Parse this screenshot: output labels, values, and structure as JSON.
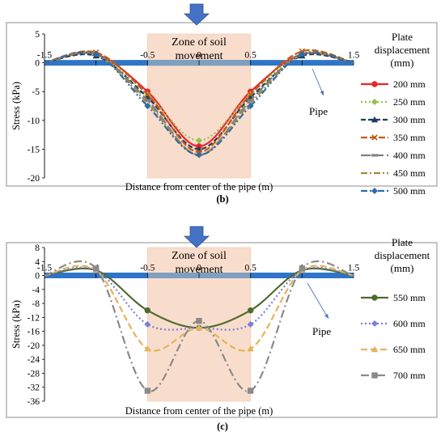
{
  "chart_data": [
    {
      "type": "line",
      "panel_label": "(b)",
      "xlabel": "Distance from center of the pipe (m)",
      "ylabel": "Stress (kPa)",
      "xlim": [
        -1.5,
        1.5
      ],
      "ylim": [
        -20,
        5
      ],
      "x_ticks": [
        "-1.5",
        "-1",
        "-0.5",
        "0",
        "0.5",
        "1",
        "1.5"
      ],
      "y_ticks": [
        "5",
        "0",
        "-5",
        "-10",
        "-15",
        "-20"
      ],
      "zone_label": [
        "Zone of soil",
        "movement"
      ],
      "zone_range": [
        -0.5,
        0.5
      ],
      "pipe_label": "Pipe",
      "legend_title": [
        "Plate",
        "displacement",
        "(mm)"
      ],
      "legend_placement": "right",
      "grid": false,
      "x": [
        -1.5,
        -1,
        -0.5,
        0,
        0.5,
        1,
        1.5
      ],
      "series": [
        {
          "name": "200 mm",
          "color": "#e8262c",
          "dash": "",
          "marker": "circle",
          "values": [
            0,
            1.5,
            -5,
            -14.5,
            -5,
            1.5,
            0
          ]
        },
        {
          "name": "250 mm",
          "color": "#92c14e",
          "dash": "2,3",
          "marker": "diamond",
          "values": [
            0,
            1.5,
            -5.5,
            -13.5,
            -5.5,
            1.5,
            0
          ]
        },
        {
          "name": "300 mm",
          "color": "#1f3b64",
          "dash": "6,3",
          "marker": "triangle",
          "values": [
            0,
            1.2,
            -6,
            -15,
            -6,
            1.2,
            0
          ]
        },
        {
          "name": "350 mm",
          "color": "#c55a11",
          "dash": "8,3",
          "marker": "x",
          "values": [
            0,
            1.8,
            -5.5,
            -15.5,
            -5.5,
            2,
            0
          ]
        },
        {
          "name": "400 mm",
          "color": "#7f7f7f",
          "dash": "12,4",
          "marker": "dash",
          "values": [
            0,
            1.5,
            -6.5,
            -16,
            -6.5,
            1.5,
            0
          ]
        },
        {
          "name": "450 mm",
          "color": "#a08a3c",
          "dash": "8,3,2,3",
          "marker": "none",
          "values": [
            0,
            1.4,
            -7,
            -16,
            -7,
            1.4,
            0
          ]
        },
        {
          "name": "500 mm",
          "color": "#2e6ba8",
          "dash": "8,3,2,3,2,3",
          "marker": "diamond",
          "values": [
            0,
            1.5,
            -7.5,
            -16,
            -7.5,
            1.5,
            0
          ]
        }
      ]
    },
    {
      "type": "line",
      "panel_label": "(c)",
      "xlabel": "Distance from center of the pipe (m)",
      "ylabel": "Stress (kPa)",
      "xlim": [
        -1.5,
        1.5
      ],
      "ylim": [
        -36,
        8
      ],
      "x_ticks": [
        "-1.5",
        "-1",
        "-0.5",
        "0",
        "0.5",
        "1",
        "1.5"
      ],
      "y_ticks": [
        "8",
        "4",
        "0",
        "-4",
        "-8",
        "-12",
        "-16",
        "-20",
        "-24",
        "-28",
        "-32",
        "-36"
      ],
      "zone_label": [
        "Zone of soil",
        "movement"
      ],
      "zone_range": [
        -0.5,
        0.5
      ],
      "pipe_label": "Pipe",
      "legend_title": [
        "Plate",
        "displacement",
        "(mm)"
      ],
      "legend_placement": "right",
      "grid": false,
      "x": [
        -1.5,
        -1,
        -0.5,
        0,
        0.5,
        1,
        1.5
      ],
      "series": [
        {
          "name": "550 mm",
          "color": "#4e6b2e",
          "dash": "",
          "marker": "circle",
          "values": [
            0,
            1.5,
            -10,
            -15,
            -10,
            1.5,
            0
          ]
        },
        {
          "name": "600 mm",
          "color": "#7b7fd6",
          "dash": "2,3",
          "marker": "diamond",
          "values": [
            0,
            1.5,
            -14,
            -15,
            -14,
            1.5,
            0
          ]
        },
        {
          "name": "650 mm",
          "color": "#e6b35c",
          "dash": "8,4",
          "marker": "triangle",
          "values": [
            0,
            1.5,
            -21,
            -15,
            -21,
            1.5,
            0
          ]
        },
        {
          "name": "700 mm",
          "color": "#8a8a8a",
          "dash": "10,4,2,4",
          "marker": "square",
          "values": [
            0,
            2,
            -33,
            -13,
            -33,
            2,
            0
          ]
        }
      ]
    }
  ]
}
